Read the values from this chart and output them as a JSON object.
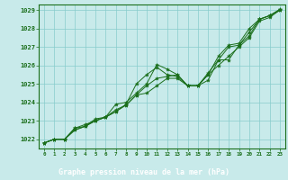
{
  "title": "Graphe pression niveau de la mer (hPa)",
  "bg_color": "#c8eaea",
  "grid_color": "#88cccc",
  "line_color": "#1a6e1a",
  "footer_color": "#1a6e1a",
  "footer_text_color": "#ffffff",
  "spine_color": "#1a6e1a",
  "xlim": [
    -0.5,
    23.5
  ],
  "ylim": [
    1021.5,
    1029.3
  ],
  "yticks": [
    1022,
    1023,
    1024,
    1025,
    1026,
    1027,
    1028,
    1029
  ],
  "xticks": [
    0,
    1,
    2,
    3,
    4,
    5,
    6,
    7,
    8,
    9,
    10,
    11,
    12,
    13,
    14,
    15,
    16,
    17,
    18,
    19,
    20,
    21,
    22,
    23
  ],
  "series": [
    [
      1021.8,
      1022.0,
      1022.0,
      1022.6,
      1022.7,
      1023.1,
      1023.2,
      1023.9,
      1024.0,
      1024.5,
      1025.0,
      1026.05,
      1025.8,
      1025.5,
      1024.9,
      1024.9,
      1025.2,
      1026.3,
      1026.3,
      1027.1,
      1027.6,
      1028.5,
      1028.7,
      1029.0
    ],
    [
      1021.8,
      1022.0,
      1022.0,
      1022.6,
      1022.8,
      1023.0,
      1023.2,
      1023.5,
      1023.9,
      1025.0,
      1025.5,
      1025.9,
      1025.5,
      1025.4,
      1024.9,
      1024.9,
      1025.5,
      1026.5,
      1027.1,
      1027.2,
      1028.0,
      1028.5,
      1028.7,
      1029.0
    ],
    [
      1021.8,
      1022.0,
      1022.0,
      1022.5,
      1022.7,
      1023.0,
      1023.2,
      1023.5,
      1023.85,
      1024.4,
      1024.9,
      1025.3,
      1025.4,
      1025.5,
      1024.9,
      1024.9,
      1025.6,
      1026.3,
      1027.0,
      1027.1,
      1027.8,
      1028.5,
      1028.7,
      1029.05
    ],
    [
      1021.8,
      1022.0,
      1022.0,
      1022.5,
      1022.7,
      1023.0,
      1023.2,
      1023.6,
      1023.85,
      1024.4,
      1024.5,
      1024.9,
      1025.3,
      1025.3,
      1024.9,
      1024.9,
      1025.5,
      1026.0,
      1026.5,
      1027.0,
      1027.5,
      1028.4,
      1028.6,
      1029.0
    ]
  ]
}
